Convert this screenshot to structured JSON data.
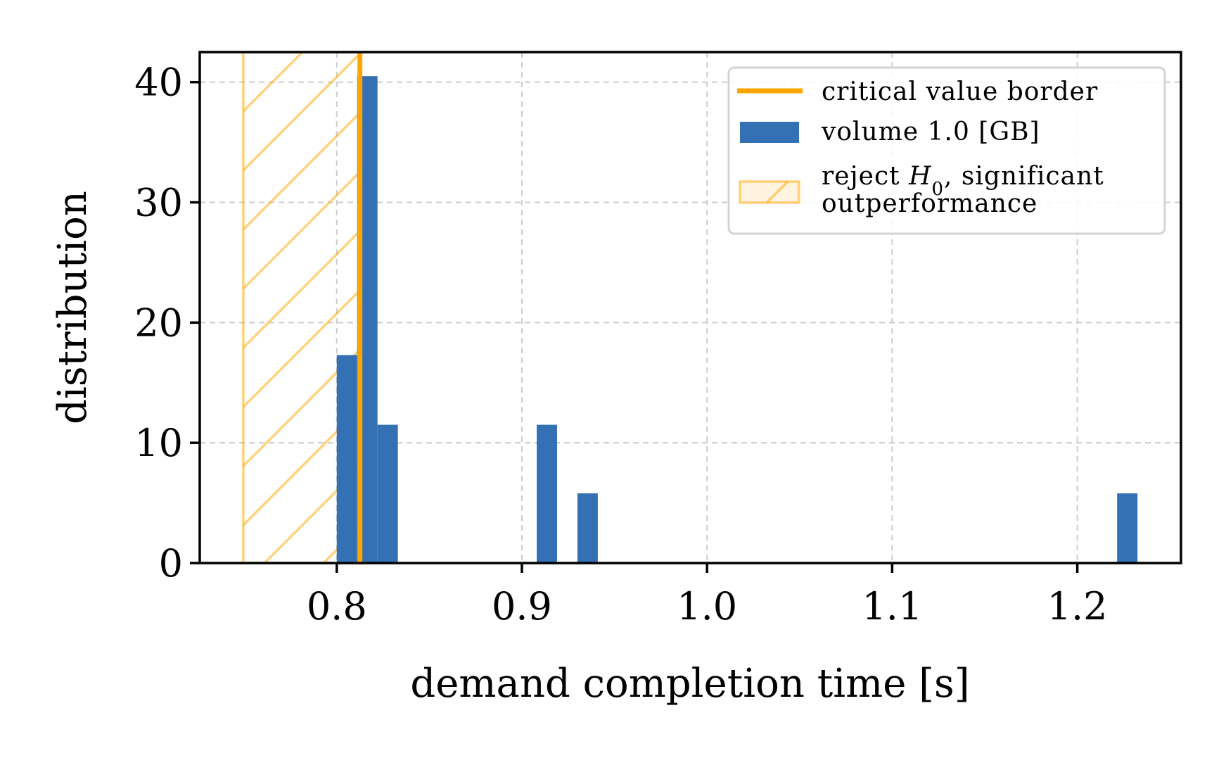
{
  "chart_data": {
    "type": "bar",
    "xlabel": "demand completion time [s]",
    "ylabel": "distribution",
    "xlim": [
      0.726,
      1.256
    ],
    "ylim": [
      0,
      42.5
    ],
    "grid": true,
    "legend_placement": "top-right",
    "x_ticks": [
      {
        "value": 0.8,
        "label": "0.8"
      },
      {
        "value": 0.9,
        "label": "0.9"
      },
      {
        "value": 1.0,
        "label": "1.0"
      },
      {
        "value": 1.1,
        "label": "1.1"
      },
      {
        "value": 1.2,
        "label": "1.2"
      }
    ],
    "y_ticks": [
      {
        "value": 0,
        "label": "0"
      },
      {
        "value": 10,
        "label": "10"
      },
      {
        "value": 20,
        "label": "20"
      },
      {
        "value": 30,
        "label": "30"
      },
      {
        "value": 40,
        "label": "40"
      }
    ],
    "critical_value": 0.8125,
    "reject_region": [
      0.7495,
      0.8125
    ],
    "series": [
      {
        "name": "volume 1.0 [GB]",
        "color": "#3471b4",
        "bins": [
          {
            "x0": 0.8,
            "x1": 0.811,
            "value": 17.3
          },
          {
            "x0": 0.811,
            "x1": 0.822,
            "value": 40.5
          },
          {
            "x0": 0.822,
            "x1": 0.833,
            "value": 11.5
          },
          {
            "x0": 0.908,
            "x1": 0.919,
            "value": 11.5
          },
          {
            "x0": 0.93,
            "x1": 0.941,
            "value": 5.8
          },
          {
            "x0": 1.2215,
            "x1": 1.2325,
            "value": 5.8
          }
        ]
      }
    ],
    "legend": {
      "critical_label": "critical value border",
      "series_label": "volume 1.0 [GB]",
      "reject_label_prefix": "reject ",
      "reject_label_symbol": "H",
      "reject_label_subscript": "0",
      "reject_label_suffix": ", significant",
      "reject_label_line2": "outperformance"
    },
    "colors": {
      "critical_line": "#ffa500",
      "reject_fill": "#ffa500",
      "bars": "#3471b4",
      "grid": "#cccccc"
    }
  }
}
